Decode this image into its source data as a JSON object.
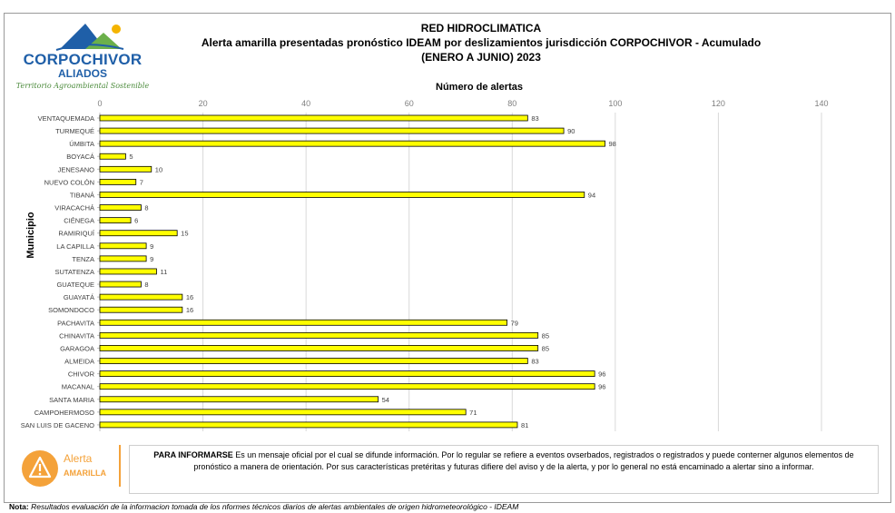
{
  "header": {
    "logo_name": "CORPOCHIVOR",
    "logo_aliados": "ALIADOS",
    "logo_tagline": "Territorio Agroambiental Sostenible",
    "title_line1": "RED HIDROCLIMATICA",
    "title_line2": "Alerta amarilla presentadas pronóstico IDEAM por deslizamientos jurisdicción CORPOCHIVOR - Acumulado",
    "title_line3": "(ENERO A JUNIO) 2023"
  },
  "chart_data": {
    "type": "bar",
    "orientation": "horizontal",
    "title": "Alerta amarilla presentadas pronóstico IDEAM por deslizamientos jurisdicción CORPOCHIVOR - Acumulado",
    "xlabel": "Número de alertas",
    "ylabel": "Municipio",
    "xlim": [
      0,
      140
    ],
    "xticks": [
      0,
      20,
      40,
      60,
      80,
      100,
      120,
      140
    ],
    "grid": true,
    "bar_color": "#ffff00",
    "categories": [
      "VENTAQUEMADA",
      "TURMEQUÉ",
      "ÚMBITA",
      "BOYACÁ",
      "JENESANO",
      "NUEVO COLÓN",
      "TIBANÁ",
      "VIRACACHÁ",
      "CIÉNEGA",
      "RAMIRIQUÍ",
      "LA CAPILLA",
      "TENZA",
      "SUTATENZA",
      "GUATEQUE",
      "GUAYATÁ",
      "SOMONDOCO",
      "PACHAVITA",
      "CHINAVITA",
      "GARAGOA",
      "ALMEIDA",
      "CHIVOR",
      "MACANAL",
      "SANTA MARIA",
      "CAMPOHERMOSO",
      "SAN LUIS DE GACENO"
    ],
    "values": [
      83,
      90,
      98,
      5,
      10,
      7,
      94,
      8,
      6,
      15,
      9,
      9,
      11,
      8,
      16,
      16,
      79,
      85,
      85,
      83,
      96,
      96,
      54,
      71,
      81
    ]
  },
  "info": {
    "alert_word": "Alerta",
    "alert_sub": "AMARILLA",
    "msg_bold": "PARA INFORMARSE",
    "msg_text": " Es un mensaje oficial por el cual se difunde información. Por lo regular se refiere a eventos ovserbados, registrados o registrados y puede conterner algunos elementos de pronóstico a manera de orientación. Por sus características pretéritas y futuras difiere del aviso y de la alerta, y por lo general no está encaminado a alertar sino a informar.",
    "note_label": "Nota:",
    "note_text": " Resultados evaluación de la informacion tomada de los nformes técnicos diarios de alertas ambientales de origen hidrometeorológico - IDEAM"
  },
  "colors": {
    "accent_blue": "#1f5fa8",
    "accent_green": "#4a8a3a",
    "alert_orange": "#f4a23a"
  }
}
